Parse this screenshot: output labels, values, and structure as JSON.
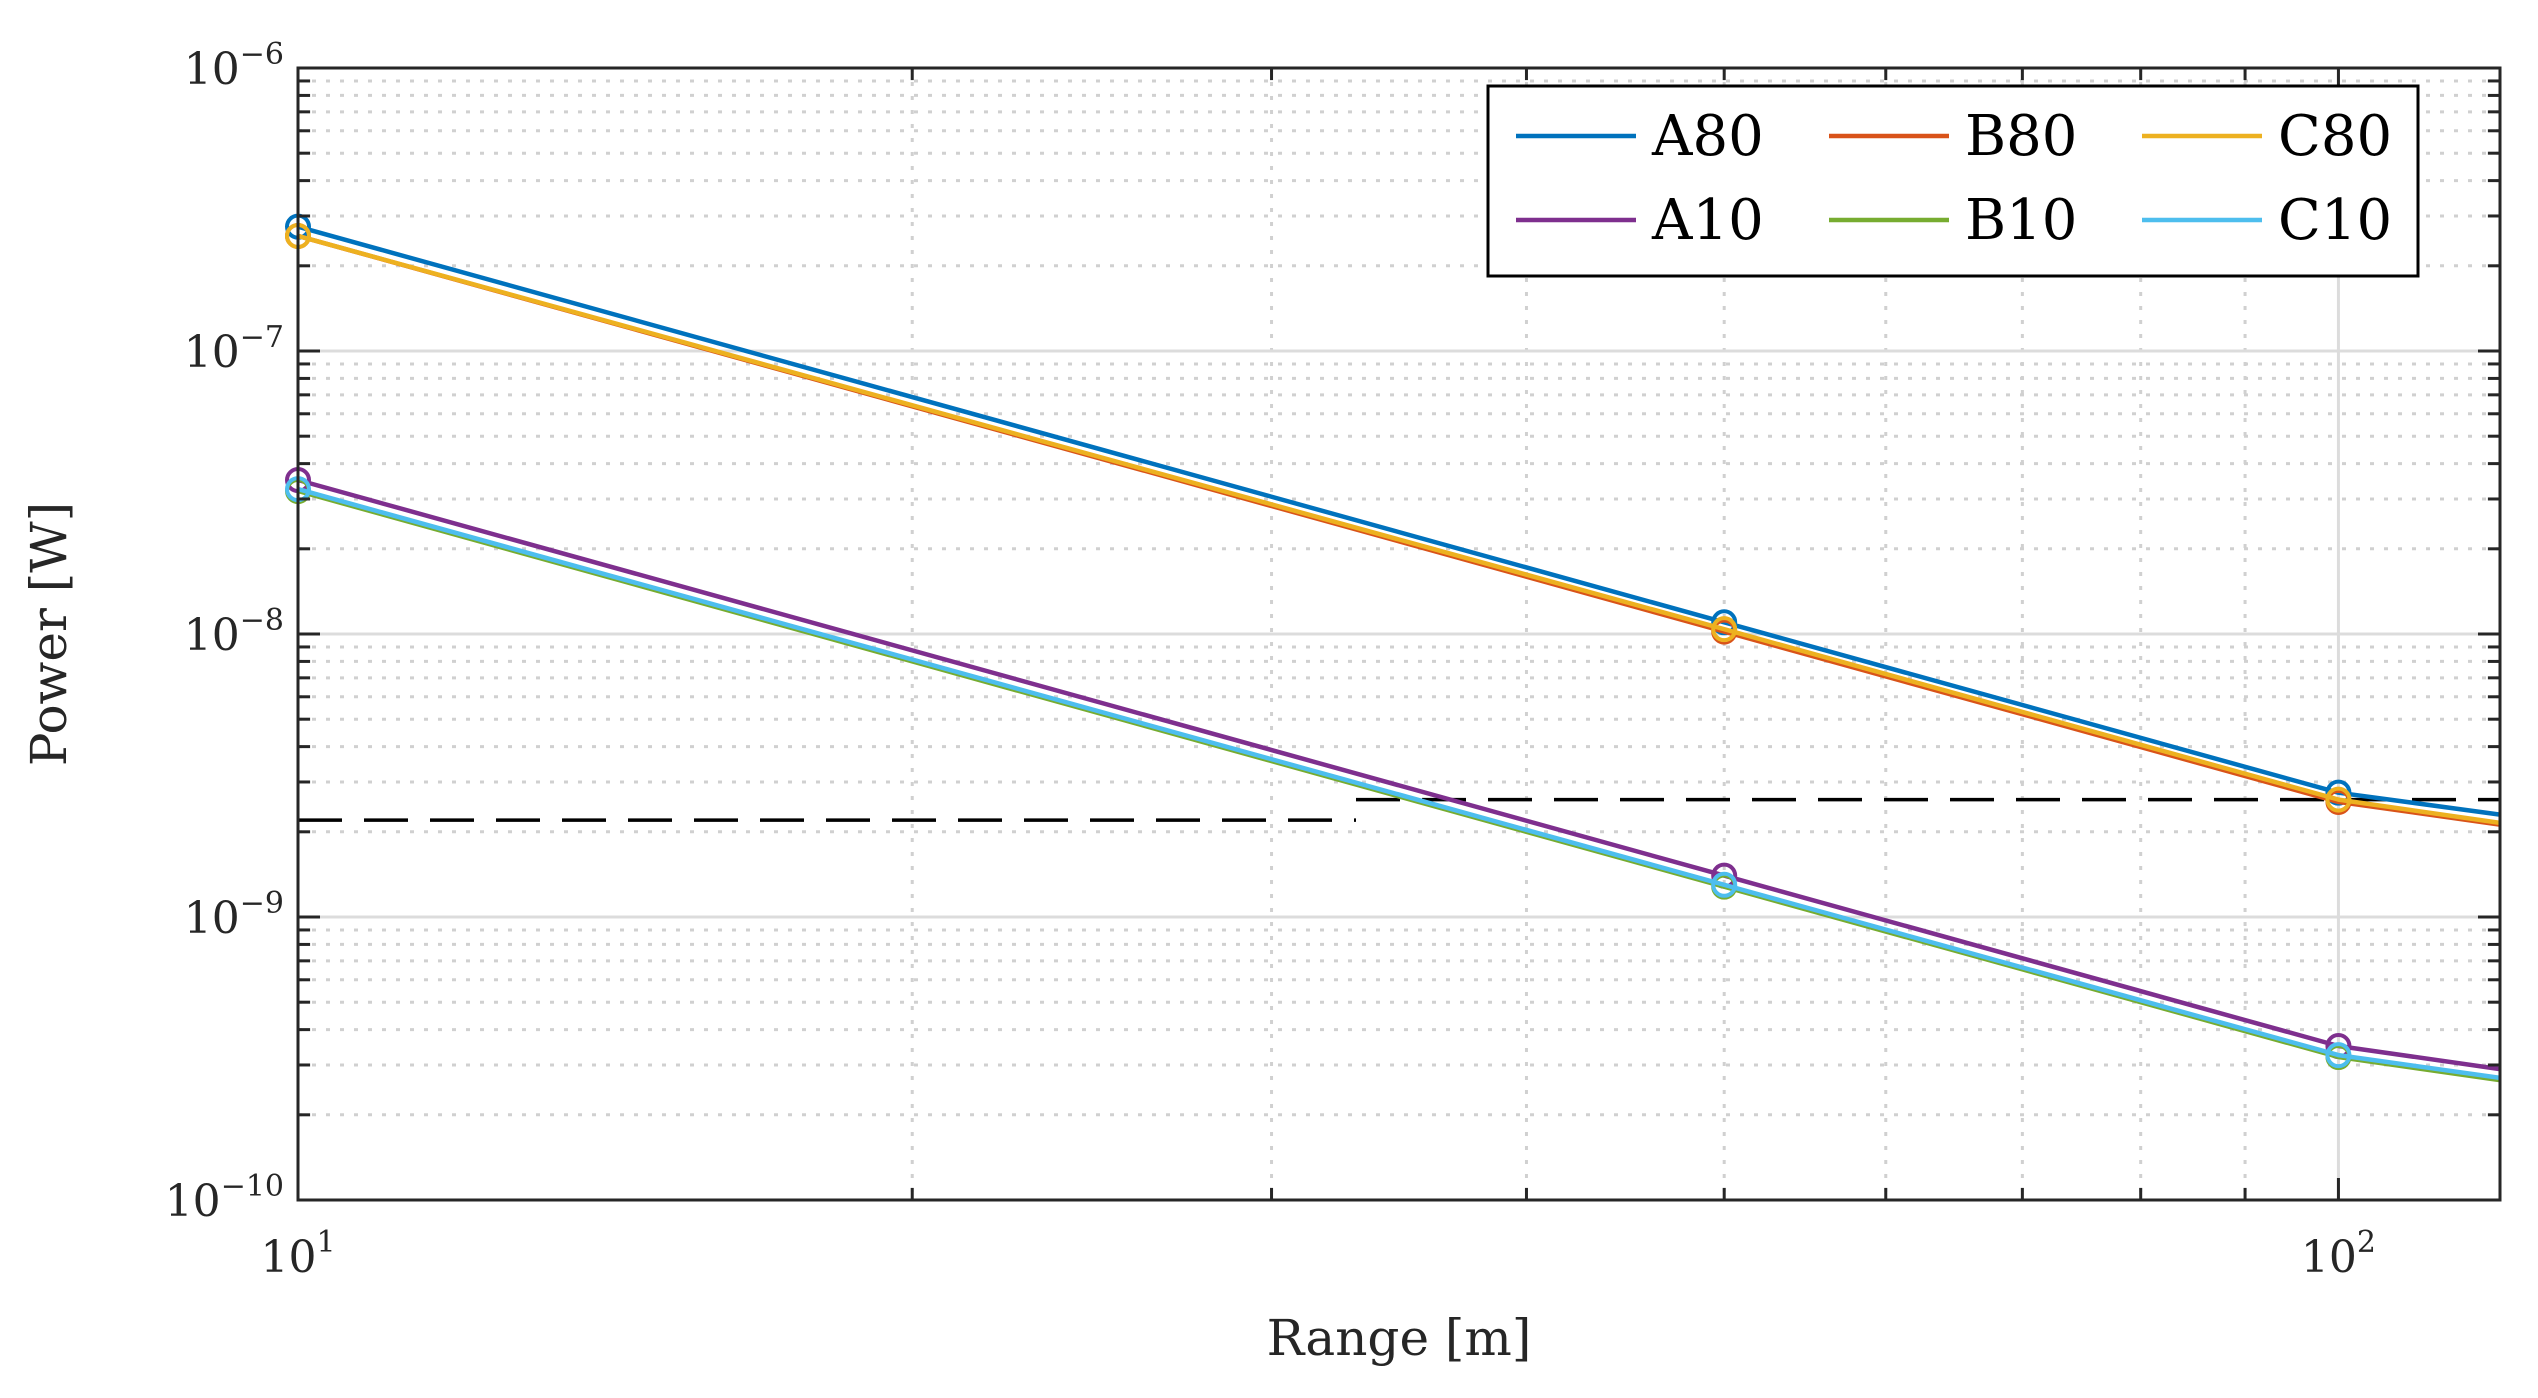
{
  "chart_data": {
    "type": "line",
    "xscale": "log",
    "yscale": "log",
    "xlim": [
      10,
      120
    ],
    "ylim": [
      1e-10,
      1e-06
    ],
    "xlabel": "Range [m]",
    "ylabel": "Power [W]",
    "grid": true,
    "xticks": [
      {
        "value": 10,
        "base": "10",
        "exp": "1"
      },
      {
        "value": 100,
        "base": "10",
        "exp": "2"
      }
    ],
    "yticks": [
      {
        "value": 1e-10,
        "base": "10",
        "exp": "−10"
      },
      {
        "value": 1e-09,
        "base": "10",
        "exp": "−9"
      },
      {
        "value": 1e-08,
        "base": "10",
        "exp": "−8"
      },
      {
        "value": 1e-07,
        "base": "10",
        "exp": "−7"
      },
      {
        "value": 1e-06,
        "base": "10",
        "exp": "−6"
      }
    ],
    "legend": {
      "placement": "top-right",
      "columns": 3
    },
    "series": [
      {
        "name": "A80",
        "color": "#0072BD",
        "points": [
          [
            10,
            2.75e-07
          ],
          [
            50,
            1.1e-08
          ],
          [
            100,
            2.75e-09
          ],
          [
            120,
            2.3e-09
          ]
        ],
        "markers": [
          10,
          50,
          100
        ]
      },
      {
        "name": "B80",
        "color": "#D95319",
        "points": [
          [
            10,
            2.55e-07
          ],
          [
            50,
            1.02e-08
          ],
          [
            100,
            2.55e-09
          ],
          [
            120,
            2.12e-09
          ]
        ],
        "markers": [
          10,
          50,
          100
        ]
      },
      {
        "name": "C80",
        "color": "#EDB120",
        "points": [
          [
            10,
            2.55e-07
          ],
          [
            50,
            1.04e-08
          ],
          [
            100,
            2.6e-09
          ],
          [
            120,
            2.15e-09
          ]
        ],
        "markers": [
          10,
          50,
          100
        ]
      },
      {
        "name": "A10",
        "color": "#7E2F8E",
        "points": [
          [
            10,
            3.5e-08
          ],
          [
            50,
            1.4e-09
          ],
          [
            100,
            3.5e-10
          ],
          [
            120,
            2.9e-10
          ]
        ],
        "markers": [
          10,
          50,
          100
        ]
      },
      {
        "name": "B10",
        "color": "#77AC30",
        "points": [
          [
            10,
            3.2e-08
          ],
          [
            50,
            1.28e-09
          ],
          [
            100,
            3.2e-10
          ],
          [
            120,
            2.65e-10
          ]
        ],
        "markers": [
          10,
          50,
          100
        ]
      },
      {
        "name": "C10",
        "color": "#4DBEEE",
        "points": [
          [
            10,
            3.25e-08
          ],
          [
            50,
            1.3e-09
          ],
          [
            100,
            3.25e-10
          ],
          [
            120,
            2.7e-10
          ]
        ],
        "markers": [
          10,
          50,
          100
        ]
      }
    ],
    "reference_lines": [
      {
        "name": "threshold-low",
        "color": "#000000",
        "style": "dashed",
        "x": [
          10,
          33
        ],
        "y": 2.2e-09
      },
      {
        "name": "threshold-high",
        "color": "#000000",
        "style": "dashed",
        "x": [
          33,
          120
        ],
        "y": 2.6e-09
      }
    ]
  }
}
